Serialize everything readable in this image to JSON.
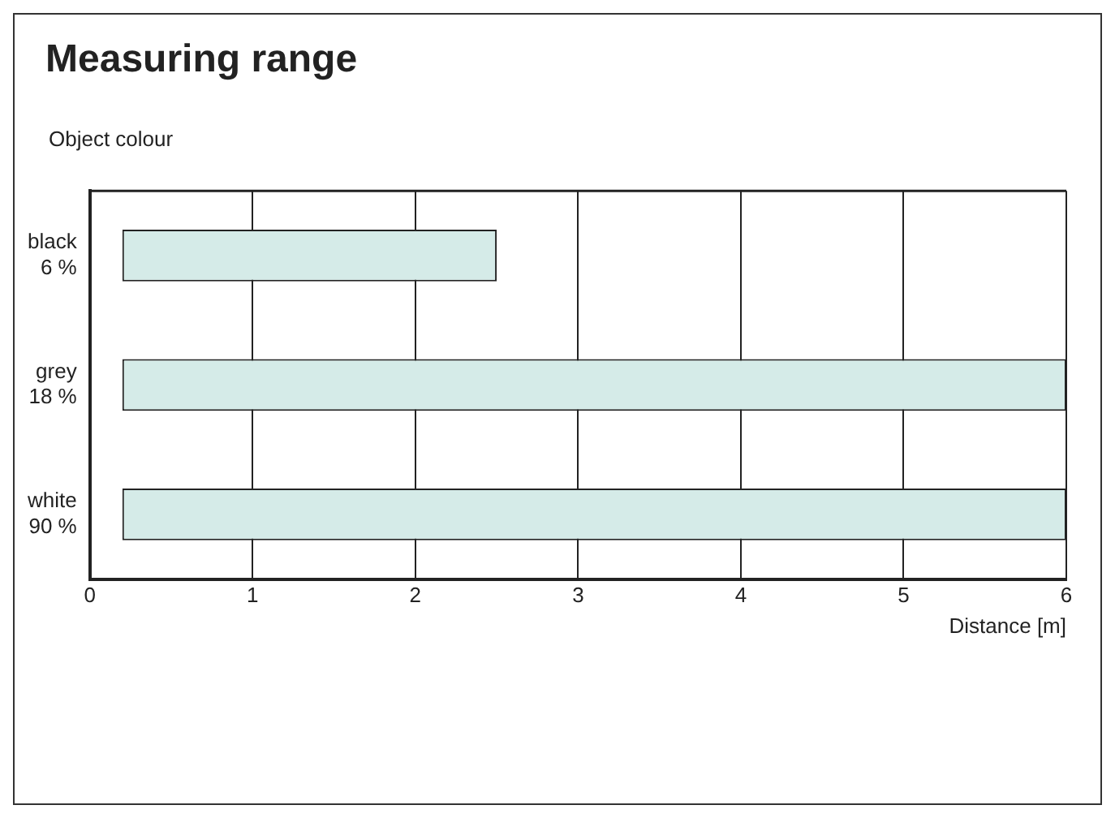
{
  "chart_data": {
    "type": "bar",
    "orientation": "horizontal",
    "title": "Measuring range",
    "ylabel": "Object colour",
    "xlabel": "Distance [m]",
    "categories": [
      "black\n6 %",
      "grey\n18 %",
      "white\n90 %"
    ],
    "base": [
      0.2,
      0.2,
      0.2
    ],
    "values": [
      2.3,
      5.8,
      5.8
    ],
    "color": "#d5ebe8",
    "xlim": [
      0,
      6
    ],
    "xticks": [
      0,
      1,
      2,
      3,
      4,
      5,
      6
    ],
    "grid": "x",
    "legend": false
  }
}
